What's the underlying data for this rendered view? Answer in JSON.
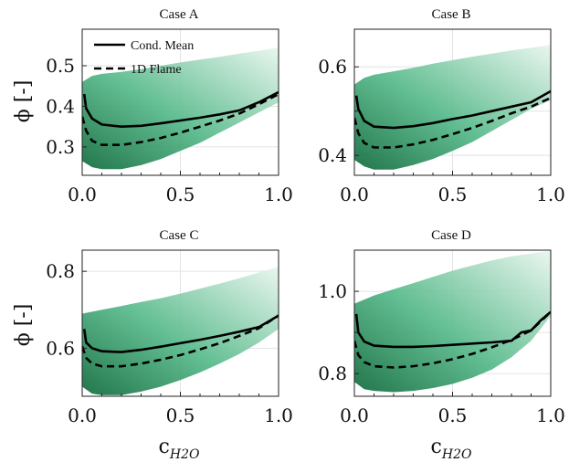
{
  "colors": {
    "scatter_light": "#e8f6ee",
    "scatter_mid": "#56b98a",
    "scatter_dark": "#0f6b3b",
    "line": "#000000"
  },
  "figure": {
    "ylabel_main": "ϕ [-]",
    "xlabel_main": "c",
    "xlabel_sub": "H2O",
    "legend_position": "upper-left of Case A"
  },
  "chart_data": [
    {
      "type": "line",
      "title": "Case A",
      "xlabel": "",
      "ylabel": "ϕ [-]",
      "xlim": [
        0,
        1.0
      ],
      "ylim": [
        0.23,
        0.59
      ],
      "xticks": [
        "0.0",
        "0.5",
        "1.0"
      ],
      "yticks": [
        0.3,
        0.4,
        0.5
      ],
      "ytick_labels": [
        "0.3",
        "0.4",
        "0.5"
      ],
      "grid": true,
      "legend": [
        "Cond. Mean",
        "1D Flame"
      ],
      "series": [
        {
          "name": "Cond. Mean",
          "x": [
            0.01,
            0.02,
            0.05,
            0.1,
            0.2,
            0.3,
            0.4,
            0.5,
            0.6,
            0.7,
            0.8,
            0.9,
            1.0
          ],
          "y": [
            0.43,
            0.395,
            0.37,
            0.355,
            0.35,
            0.352,
            0.358,
            0.365,
            0.372,
            0.38,
            0.39,
            0.41,
            0.435
          ]
        },
        {
          "name": "1D Flame",
          "x": [
            0.0,
            0.02,
            0.05,
            0.1,
            0.2,
            0.3,
            0.4,
            0.5,
            0.6,
            0.7,
            0.8,
            0.9,
            1.0
          ],
          "y": [
            0.375,
            0.34,
            0.315,
            0.305,
            0.305,
            0.312,
            0.322,
            0.335,
            0.35,
            0.365,
            0.382,
            0.405,
            0.43
          ]
        }
      ],
      "scatter_band": {
        "x": [
          0.0,
          0.05,
          0.1,
          0.2,
          0.3,
          0.4,
          0.5,
          0.6,
          0.7,
          0.8,
          0.9,
          1.0
        ],
        "upper": [
          0.46,
          0.475,
          0.48,
          0.485,
          0.492,
          0.5,
          0.508,
          0.515,
          0.522,
          0.53,
          0.537,
          0.545
        ],
        "lower": [
          0.265,
          0.25,
          0.245,
          0.245,
          0.255,
          0.27,
          0.29,
          0.31,
          0.335,
          0.36,
          0.385,
          0.41
        ]
      }
    },
    {
      "type": "line",
      "title": "Case B",
      "xlabel": "",
      "ylabel": "",
      "xlim": [
        0,
        1.0
      ],
      "ylim": [
        0.355,
        0.685
      ],
      "xticks": [
        "0.0",
        "0.5",
        "1.0"
      ],
      "yticks": [
        0.4,
        0.5,
        0.6
      ],
      "ytick_labels": [
        "0.4",
        "",
        "0.6"
      ],
      "grid": true,
      "series": [
        {
          "name": "Cond. Mean",
          "x": [
            0.01,
            0.02,
            0.05,
            0.1,
            0.2,
            0.3,
            0.4,
            0.5,
            0.6,
            0.7,
            0.8,
            0.9,
            1.0
          ],
          "y": [
            0.535,
            0.505,
            0.478,
            0.465,
            0.462,
            0.466,
            0.473,
            0.482,
            0.49,
            0.5,
            0.51,
            0.52,
            0.545
          ]
        },
        {
          "name": "1D Flame",
          "x": [
            0.0,
            0.02,
            0.05,
            0.1,
            0.2,
            0.3,
            0.4,
            0.5,
            0.6,
            0.7,
            0.8,
            0.9,
            1.0
          ],
          "y": [
            0.485,
            0.45,
            0.428,
            0.418,
            0.418,
            0.425,
            0.435,
            0.448,
            0.462,
            0.478,
            0.495,
            0.51,
            0.53
          ]
        }
      ],
      "scatter_band": {
        "x": [
          0.0,
          0.05,
          0.1,
          0.2,
          0.3,
          0.4,
          0.5,
          0.6,
          0.7,
          0.8,
          0.9,
          1.0
        ],
        "upper": [
          0.56,
          0.575,
          0.582,
          0.59,
          0.598,
          0.607,
          0.615,
          0.623,
          0.63,
          0.637,
          0.643,
          0.65
        ],
        "lower": [
          0.39,
          0.375,
          0.368,
          0.368,
          0.378,
          0.392,
          0.41,
          0.43,
          0.455,
          0.48,
          0.505,
          0.525
        ]
      }
    },
    {
      "type": "line",
      "title": "Case C",
      "xlabel": "c_H2O",
      "ylabel": "ϕ [-]",
      "xlim": [
        0,
        1.0
      ],
      "ylim": [
        0.475,
        0.855
      ],
      "xticks": [
        "0.0",
        "0.5",
        "1.0"
      ],
      "yticks": [
        0.6,
        0.8
      ],
      "ytick_labels": [
        "0.6",
        "0.8"
      ],
      "grid": true,
      "series": [
        {
          "name": "Cond. Mean",
          "x": [
            0.01,
            0.02,
            0.05,
            0.1,
            0.2,
            0.3,
            0.4,
            0.5,
            0.6,
            0.7,
            0.8,
            0.9,
            1.0
          ],
          "y": [
            0.65,
            0.615,
            0.6,
            0.592,
            0.59,
            0.596,
            0.604,
            0.613,
            0.622,
            0.632,
            0.643,
            0.655,
            0.685
          ]
        },
        {
          "name": "1D Flame",
          "x": [
            0.0,
            0.02,
            0.05,
            0.1,
            0.2,
            0.3,
            0.4,
            0.5,
            0.6,
            0.7,
            0.8,
            0.9,
            1.0
          ],
          "y": [
            0.605,
            0.575,
            0.56,
            0.553,
            0.553,
            0.56,
            0.57,
            0.582,
            0.597,
            0.613,
            0.632,
            0.652,
            0.685
          ]
        }
      ],
      "scatter_band": {
        "x": [
          0.0,
          0.05,
          0.1,
          0.2,
          0.3,
          0.4,
          0.5,
          0.6,
          0.7,
          0.8,
          0.9,
          1.0
        ],
        "upper": [
          0.69,
          0.695,
          0.7,
          0.71,
          0.72,
          0.73,
          0.742,
          0.755,
          0.768,
          0.782,
          0.797,
          0.812
        ],
        "lower": [
          0.5,
          0.482,
          0.478,
          0.478,
          0.487,
          0.5,
          0.517,
          0.537,
          0.56,
          0.585,
          0.615,
          0.65
        ]
      }
    },
    {
      "type": "line",
      "title": "Case D",
      "xlabel": "c_H2O",
      "ylabel": "",
      "xlim": [
        0,
        1.0
      ],
      "ylim": [
        0.745,
        1.1
      ],
      "xticks": [
        "0.0",
        "0.5",
        "1.0"
      ],
      "yticks": [
        0.8,
        0.9,
        1.0
      ],
      "ytick_labels": [
        "0.8",
        "",
        "1.0"
      ],
      "grid": true,
      "series": [
        {
          "name": "Cond. Mean",
          "x": [
            0.01,
            0.02,
            0.05,
            0.1,
            0.2,
            0.3,
            0.4,
            0.5,
            0.6,
            0.7,
            0.8,
            0.85,
            0.9,
            0.95,
            1.0
          ],
          "y": [
            0.945,
            0.9,
            0.878,
            0.868,
            0.865,
            0.865,
            0.867,
            0.87,
            0.873,
            0.876,
            0.88,
            0.9,
            0.905,
            0.93,
            0.95
          ]
        },
        {
          "name": "1D Flame",
          "x": [
            0.0,
            0.02,
            0.05,
            0.1,
            0.2,
            0.3,
            0.4,
            0.5,
            0.6,
            0.7,
            0.8,
            0.9,
            1.0
          ],
          "y": [
            0.88,
            0.845,
            0.828,
            0.818,
            0.815,
            0.818,
            0.825,
            0.835,
            0.848,
            0.864,
            0.882,
            0.905,
            0.95
          ]
        }
      ],
      "scatter_band": {
        "x": [
          0.0,
          0.05,
          0.1,
          0.2,
          0.3,
          0.4,
          0.5,
          0.6,
          0.7,
          0.8,
          0.9,
          1.0
        ],
        "upper": [
          0.97,
          0.98,
          0.99,
          1.005,
          1.02,
          1.035,
          1.05,
          1.063,
          1.075,
          1.085,
          1.092,
          1.098
        ],
        "lower": [
          0.78,
          0.762,
          0.758,
          0.755,
          0.758,
          0.765,
          0.775,
          0.79,
          0.81,
          0.84,
          0.88,
          0.94
        ]
      }
    }
  ]
}
